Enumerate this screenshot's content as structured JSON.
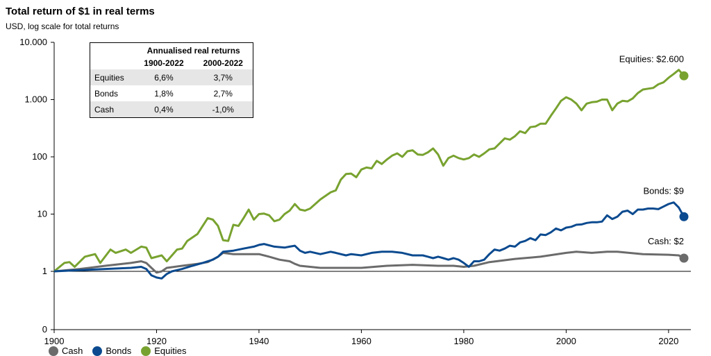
{
  "title": "Total return of $1 in real terms",
  "subtitle": "USD, log scale for total returns",
  "colors": {
    "cash": "#6b6b6b",
    "bonds": "#0b4a8f",
    "equities": "#78a22f"
  },
  "table": {
    "header": "Annualised real returns",
    "col1": "1900-2022",
    "col2": "2000-2022",
    "rows": [
      {
        "label": "Equities",
        "v1": "6,6%",
        "v2": "3,7%"
      },
      {
        "label": "Bonds",
        "v1": "1,8%",
        "v2": "2,7%"
      },
      {
        "label": "Cash",
        "v1": "0,4%",
        "v2": "-1,0%"
      }
    ]
  },
  "chart_data": {
    "type": "line",
    "yscale": "log",
    "xlim": [
      1900,
      2023
    ],
    "ylim": [
      1,
      10000
    ],
    "yticks": [
      {
        "value": 10000,
        "label": "10.000"
      },
      {
        "value": 1000,
        "label": "1.000"
      },
      {
        "value": 100,
        "label": "100"
      },
      {
        "value": 10,
        "label": "10"
      },
      {
        "value": 1,
        "label": "1"
      }
    ],
    "y_zero_label": "0",
    "xticks": [
      1900,
      1920,
      1940,
      1960,
      1980,
      2000,
      2020
    ],
    "legend": [
      "Cash",
      "Bonds",
      "Equities"
    ],
    "legend_position": "bottom-left",
    "series": [
      {
        "name": "Equities",
        "end_label": "Equities: $2.600",
        "end_point": [
          2023,
          2600
        ],
        "points": [
          [
            1900,
            1
          ],
          [
            1902,
            1.4
          ],
          [
            1903,
            1.45
          ],
          [
            1904,
            1.2
          ],
          [
            1906,
            1.8
          ],
          [
            1908,
            2.0
          ],
          [
            1909,
            1.4
          ],
          [
            1911,
            2.4
          ],
          [
            1912,
            2.1
          ],
          [
            1914,
            2.4
          ],
          [
            1915,
            2.1
          ],
          [
            1917,
            2.7
          ],
          [
            1918,
            2.6
          ],
          [
            1919,
            1.7
          ],
          [
            1921,
            1.9
          ],
          [
            1922,
            1.5
          ],
          [
            1924,
            2.4
          ],
          [
            1925,
            2.5
          ],
          [
            1926,
            3.4
          ],
          [
            1928,
            4.5
          ],
          [
            1930,
            8.5
          ],
          [
            1931,
            8.0
          ],
          [
            1932,
            6.2
          ],
          [
            1933,
            3.5
          ],
          [
            1934,
            3.4
          ],
          [
            1935,
            6.5
          ],
          [
            1936,
            6.2
          ],
          [
            1937,
            8.5
          ],
          [
            1938,
            12
          ],
          [
            1939,
            8
          ],
          [
            1940,
            10
          ],
          [
            1941,
            10.2
          ],
          [
            1942,
            9.5
          ],
          [
            1943,
            7.5
          ],
          [
            1944,
            8.0
          ],
          [
            1945,
            10
          ],
          [
            1946,
            11.5
          ],
          [
            1947,
            15
          ],
          [
            1948,
            12
          ],
          [
            1949,
            11.5
          ],
          [
            1950,
            12.5
          ],
          [
            1952,
            18
          ],
          [
            1954,
            24
          ],
          [
            1955,
            26
          ],
          [
            1956,
            40
          ],
          [
            1957,
            50
          ],
          [
            1958,
            51
          ],
          [
            1959,
            44
          ],
          [
            1960,
            60
          ],
          [
            1961,
            65
          ],
          [
            1962,
            63
          ],
          [
            1963,
            85
          ],
          [
            1964,
            75
          ],
          [
            1965,
            90
          ],
          [
            1966,
            105
          ],
          [
            1967,
            115
          ],
          [
            1968,
            100
          ],
          [
            1969,
            125
          ],
          [
            1970,
            130
          ],
          [
            1971,
            110
          ],
          [
            1972,
            108
          ],
          [
            1973,
            120
          ],
          [
            1974,
            140
          ],
          [
            1975,
            110
          ],
          [
            1976,
            70
          ],
          [
            1977,
            95
          ],
          [
            1978,
            105
          ],
          [
            1979,
            95
          ],
          [
            1980,
            90
          ],
          [
            1981,
            95
          ],
          [
            1982,
            110
          ],
          [
            1983,
            100
          ],
          [
            1984,
            115
          ],
          [
            1985,
            135
          ],
          [
            1986,
            140
          ],
          [
            1988,
            210
          ],
          [
            1989,
            200
          ],
          [
            1990,
            230
          ],
          [
            1991,
            280
          ],
          [
            1992,
            260
          ],
          [
            1993,
            330
          ],
          [
            1994,
            340
          ],
          [
            1995,
            380
          ],
          [
            1996,
            380
          ],
          [
            1997,
            520
          ],
          [
            1998,
            700
          ],
          [
            1999,
            950
          ],
          [
            2000,
            1100
          ],
          [
            2001,
            1000
          ],
          [
            2002,
            850
          ],
          [
            2003,
            650
          ],
          [
            2004,
            850
          ],
          [
            2005,
            900
          ],
          [
            2006,
            920
          ],
          [
            2007,
            1000
          ],
          [
            2008,
            1000
          ],
          [
            2009,
            650
          ],
          [
            2010,
            850
          ],
          [
            2011,
            950
          ],
          [
            2012,
            930
          ],
          [
            2013,
            1050
          ],
          [
            2014,
            1300
          ],
          [
            2015,
            1500
          ],
          [
            2016,
            1550
          ],
          [
            2017,
            1600
          ],
          [
            2018,
            1850
          ],
          [
            2019,
            2000
          ],
          [
            2020,
            2400
          ],
          [
            2021,
            2800
          ],
          [
            2022,
            3300
          ],
          [
            2023,
            2600
          ]
        ]
      },
      {
        "name": "Bonds",
        "end_label": "Bonds: $9",
        "end_point": [
          2023,
          9
        ],
        "points": [
          [
            1900,
            1
          ],
          [
            1905,
            1.05
          ],
          [
            1910,
            1.1
          ],
          [
            1915,
            1.15
          ],
          [
            1917,
            1.2
          ],
          [
            1918,
            1.1
          ],
          [
            1919,
            0.85
          ],
          [
            1920,
            0.78
          ],
          [
            1921,
            0.75
          ],
          [
            1922,
            0.9
          ],
          [
            1923,
            1.0
          ],
          [
            1925,
            1.1
          ],
          [
            1927,
            1.25
          ],
          [
            1929,
            1.4
          ],
          [
            1931,
            1.6
          ],
          [
            1932,
            1.8
          ],
          [
            1933,
            2.2
          ],
          [
            1935,
            2.3
          ],
          [
            1937,
            2.5
          ],
          [
            1939,
            2.7
          ],
          [
            1940,
            2.9
          ],
          [
            1941,
            3.0
          ],
          [
            1943,
            2.7
          ],
          [
            1945,
            2.6
          ],
          [
            1946,
            2.7
          ],
          [
            1947,
            2.8
          ],
          [
            1948,
            2.3
          ],
          [
            1949,
            2.1
          ],
          [
            1950,
            2.2
          ],
          [
            1952,
            2.0
          ],
          [
            1954,
            2.2
          ],
          [
            1955,
            2.1
          ],
          [
            1957,
            1.9
          ],
          [
            1958,
            2.0
          ],
          [
            1960,
            1.9
          ],
          [
            1962,
            2.1
          ],
          [
            1964,
            2.2
          ],
          [
            1966,
            2.2
          ],
          [
            1968,
            2.1
          ],
          [
            1970,
            1.9
          ],
          [
            1972,
            1.9
          ],
          [
            1973,
            1.8
          ],
          [
            1974,
            1.7
          ],
          [
            1975,
            1.8
          ],
          [
            1976,
            1.7
          ],
          [
            1977,
            1.6
          ],
          [
            1978,
            1.7
          ],
          [
            1979,
            1.6
          ],
          [
            1980,
            1.4
          ],
          [
            1981,
            1.2
          ],
          [
            1982,
            1.5
          ],
          [
            1983,
            1.5
          ],
          [
            1984,
            1.6
          ],
          [
            1985,
            2.0
          ],
          [
            1986,
            2.4
          ],
          [
            1987,
            2.3
          ],
          [
            1988,
            2.5
          ],
          [
            1989,
            2.8
          ],
          [
            1990,
            2.7
          ],
          [
            1991,
            3.2
          ],
          [
            1992,
            3.4
          ],
          [
            1993,
            3.8
          ],
          [
            1994,
            3.5
          ],
          [
            1995,
            4.4
          ],
          [
            1996,
            4.3
          ],
          [
            1997,
            4.8
          ],
          [
            1998,
            5.6
          ],
          [
            1999,
            5.2
          ],
          [
            2000,
            5.8
          ],
          [
            2001,
            6.0
          ],
          [
            2002,
            6.5
          ],
          [
            2003,
            6.6
          ],
          [
            2004,
            7.0
          ],
          [
            2005,
            7.2
          ],
          [
            2006,
            7.2
          ],
          [
            2007,
            7.4
          ],
          [
            2008,
            9.5
          ],
          [
            2009,
            8.2
          ],
          [
            2010,
            9.0
          ],
          [
            2011,
            11
          ],
          [
            2012,
            11.5
          ],
          [
            2013,
            10
          ],
          [
            2014,
            12
          ],
          [
            2015,
            12
          ],
          [
            2016,
            12.5
          ],
          [
            2017,
            12.5
          ],
          [
            2018,
            12.2
          ],
          [
            2019,
            13.5
          ],
          [
            2020,
            15
          ],
          [
            2021,
            16
          ],
          [
            2022,
            13
          ],
          [
            2023,
            9
          ]
        ]
      },
      {
        "name": "Cash",
        "end_label": "Cash: $2",
        "end_point": [
          2023,
          1.7
        ],
        "points": [
          [
            1900,
            1
          ],
          [
            1905,
            1.1
          ],
          [
            1910,
            1.25
          ],
          [
            1915,
            1.4
          ],
          [
            1917,
            1.5
          ],
          [
            1918,
            1.4
          ],
          [
            1919,
            1.15
          ],
          [
            1920,
            0.95
          ],
          [
            1921,
            1.0
          ],
          [
            1922,
            1.15
          ],
          [
            1925,
            1.25
          ],
          [
            1928,
            1.35
          ],
          [
            1930,
            1.45
          ],
          [
            1932,
            1.8
          ],
          [
            1933,
            2.1
          ],
          [
            1935,
            2.0
          ],
          [
            1938,
            2.0
          ],
          [
            1940,
            2.0
          ],
          [
            1942,
            1.8
          ],
          [
            1944,
            1.6
          ],
          [
            1946,
            1.5
          ],
          [
            1947,
            1.35
          ],
          [
            1948,
            1.25
          ],
          [
            1950,
            1.2
          ],
          [
            1952,
            1.15
          ],
          [
            1955,
            1.15
          ],
          [
            1960,
            1.15
          ],
          [
            1965,
            1.25
          ],
          [
            1970,
            1.3
          ],
          [
            1975,
            1.25
          ],
          [
            1978,
            1.25
          ],
          [
            1980,
            1.2
          ],
          [
            1982,
            1.25
          ],
          [
            1985,
            1.45
          ],
          [
            1990,
            1.65
          ],
          [
            1995,
            1.8
          ],
          [
            2000,
            2.1
          ],
          [
            2002,
            2.2
          ],
          [
            2005,
            2.1
          ],
          [
            2008,
            2.2
          ],
          [
            2010,
            2.2
          ],
          [
            2015,
            2.0
          ],
          [
            2020,
            1.95
          ],
          [
            2022,
            1.9
          ],
          [
            2023,
            1.7
          ]
        ]
      }
    ]
  }
}
